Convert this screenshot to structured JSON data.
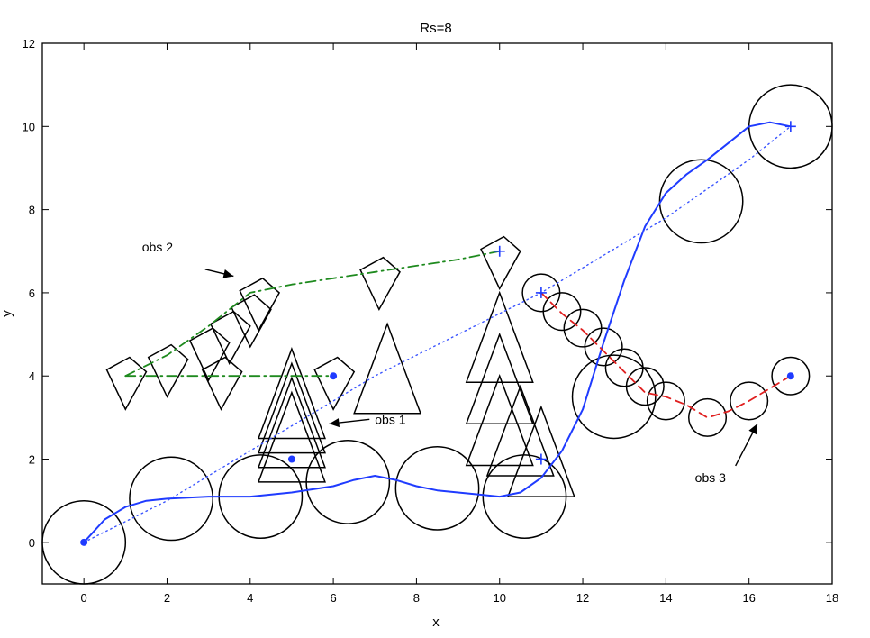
{
  "chart_data": {
    "type": "line",
    "title": "Rs=8",
    "xlabel": "x",
    "ylabel": "y",
    "xlim": [
      -1,
      18
    ],
    "ylim": [
      -1,
      12
    ],
    "xticks": [
      0,
      2,
      4,
      6,
      8,
      10,
      12,
      14,
      16,
      18
    ],
    "yticks": [
      0,
      2,
      4,
      6,
      8,
      10,
      12
    ],
    "grid": false,
    "colors": {
      "robot_path": "#1f3bff",
      "reference_path": "#3b55ff",
      "obs1_path": "#000000",
      "obs2_path": "#1e8a1e",
      "obs3_path": "#e02020",
      "outline": "#000000"
    },
    "series": [
      {
        "style": "solid",
        "x": [
          0,
          0.5,
          1,
          1.5,
          2,
          3,
          4,
          5,
          6,
          6.5,
          7,
          7.5,
          8,
          8.5,
          9,
          9.5,
          10,
          10.5,
          11,
          11.5,
          12,
          12.5,
          13,
          13.5,
          14,
          14.5,
          15,
          15.5,
          16,
          16.5,
          17
        ],
        "y": [
          0,
          0.55,
          0.85,
          1.0,
          1.05,
          1.1,
          1.1,
          1.2,
          1.35,
          1.5,
          1.6,
          1.5,
          1.35,
          1.25,
          1.2,
          1.15,
          1.1,
          1.2,
          1.55,
          2.2,
          3.2,
          4.8,
          6.3,
          7.6,
          8.4,
          8.85,
          9.2,
          9.6,
          10.0,
          10.1,
          10.0
        ]
      },
      {
        "style": "dotted",
        "x": [
          0,
          1,
          2,
          3,
          4,
          5,
          6,
          7,
          8,
          9,
          10,
          11,
          12,
          13,
          14,
          15,
          16,
          17
        ],
        "y": [
          0,
          0.5,
          1.0,
          1.6,
          2.2,
          2.8,
          3.4,
          4.0,
          4.5,
          5.0,
          5.5,
          6.0,
          6.6,
          7.2,
          7.8,
          8.5,
          9.2,
          10.0
        ]
      },
      {
        "style": "dashdot",
        "x": [
          1,
          2,
          3,
          4,
          5,
          6
        ],
        "y": [
          4.0,
          4.0,
          4.0,
          4.0,
          4.0,
          4.0
        ]
      },
      {
        "style": "dashdot",
        "x": [
          1,
          2,
          3,
          4,
          5,
          6,
          7,
          8,
          9,
          10
        ],
        "y": [
          4.0,
          4.5,
          5.2,
          6.0,
          6.2,
          6.35,
          6.5,
          6.65,
          6.8,
          7.0
        ]
      },
      {
        "style": "dashed",
        "x": [
          11,
          11.5,
          12,
          12.5,
          13,
          13.5,
          14,
          14.5,
          15,
          15.5,
          16,
          16.5,
          17
        ],
        "y": [
          6.0,
          5.5,
          5.1,
          4.6,
          4.1,
          3.6,
          3.5,
          3.3,
          3.0,
          3.15,
          3.4,
          3.7,
          4.0
        ]
      }
    ],
    "markers": [
      {
        "x": 0,
        "y": 0,
        "symbol": "*"
      },
      {
        "x": 17,
        "y": 10,
        "symbol": "+"
      },
      {
        "x": 6,
        "y": 4,
        "symbol": "*"
      },
      {
        "x": 10,
        "y": 7,
        "symbol": "+"
      },
      {
        "x": 5,
        "y": 2,
        "symbol": "*"
      },
      {
        "x": 11,
        "y": 2,
        "symbol": "+"
      },
      {
        "x": 11,
        "y": 6,
        "symbol": "+"
      },
      {
        "x": 17,
        "y": 4,
        "symbol": "*"
      }
    ],
    "robot_circles": [
      {
        "x": 0,
        "y": 0,
        "r": 1.0
      },
      {
        "x": 2.1,
        "y": 1.05,
        "r": 1.0
      },
      {
        "x": 4.25,
        "y": 1.1,
        "r": 1.0
      },
      {
        "x": 6.35,
        "y": 1.45,
        "r": 1.0
      },
      {
        "x": 8.5,
        "y": 1.3,
        "r": 1.0
      },
      {
        "x": 10.6,
        "y": 1.1,
        "r": 1.0
      },
      {
        "x": 12.75,
        "y": 3.5,
        "r": 1.0
      },
      {
        "x": 14.85,
        "y": 8.2,
        "r": 1.0
      },
      {
        "x": 17,
        "y": 10,
        "r": 1.0
      }
    ],
    "obs3_circles": [
      {
        "x": 11.0,
        "y": 6.0,
        "r": 0.45
      },
      {
        "x": 11.5,
        "y": 5.55,
        "r": 0.45
      },
      {
        "x": 12.0,
        "y": 5.15,
        "r": 0.45
      },
      {
        "x": 12.5,
        "y": 4.7,
        "r": 0.45
      },
      {
        "x": 13.0,
        "y": 4.2,
        "r": 0.45
      },
      {
        "x": 13.5,
        "y": 3.75,
        "r": 0.45
      },
      {
        "x": 14.0,
        "y": 3.4,
        "r": 0.45
      },
      {
        "x": 15.0,
        "y": 3.0,
        "r": 0.45
      },
      {
        "x": 16.0,
        "y": 3.4,
        "r": 0.45
      },
      {
        "x": 17.0,
        "y": 4.0,
        "r": 0.45
      }
    ],
    "obs1_triangles": [
      {
        "x": 5,
        "y": 2.0
      },
      {
        "x": 5,
        "y": 2.35
      },
      {
        "x": 5,
        "y": 2.7
      },
      {
        "x": 5,
        "y": 3.05
      },
      {
        "x": 7.3,
        "y": 3.65
      },
      {
        "x": 10,
        "y": 4.4
      },
      {
        "x": 10,
        "y": 3.4
      },
      {
        "x": 10,
        "y": 2.4
      },
      {
        "x": 10.5,
        "y": 2.15
      },
      {
        "x": 11.0,
        "y": 1.65
      }
    ],
    "obs2_kites": [
      {
        "x": 1.0,
        "y": 4.0
      },
      {
        "x": 2.0,
        "y": 4.3
      },
      {
        "x": 3.0,
        "y": 4.7
      },
      {
        "x": 3.5,
        "y": 5.1
      },
      {
        "x": 4.0,
        "y": 5.5
      },
      {
        "x": 4.2,
        "y": 5.9
      },
      {
        "x": 3.3,
        "y": 4.0
      },
      {
        "x": 6.0,
        "y": 4.0
      },
      {
        "x": 7.1,
        "y": 6.4
      },
      {
        "x": 10.0,
        "y": 6.9
      }
    ],
    "annotations": [
      {
        "text": "obs 1",
        "x": 7.0,
        "y": 2.85,
        "arrow_to": [
          5.9,
          2.85
        ]
      },
      {
        "text": "obs 2",
        "x": 1.4,
        "y": 7.0,
        "arrow_to": [
          3.6,
          6.4
        ]
      },
      {
        "text": "obs 3",
        "x": 14.7,
        "y": 1.45,
        "arrow_to": [
          16.2,
          2.85
        ]
      }
    ]
  }
}
